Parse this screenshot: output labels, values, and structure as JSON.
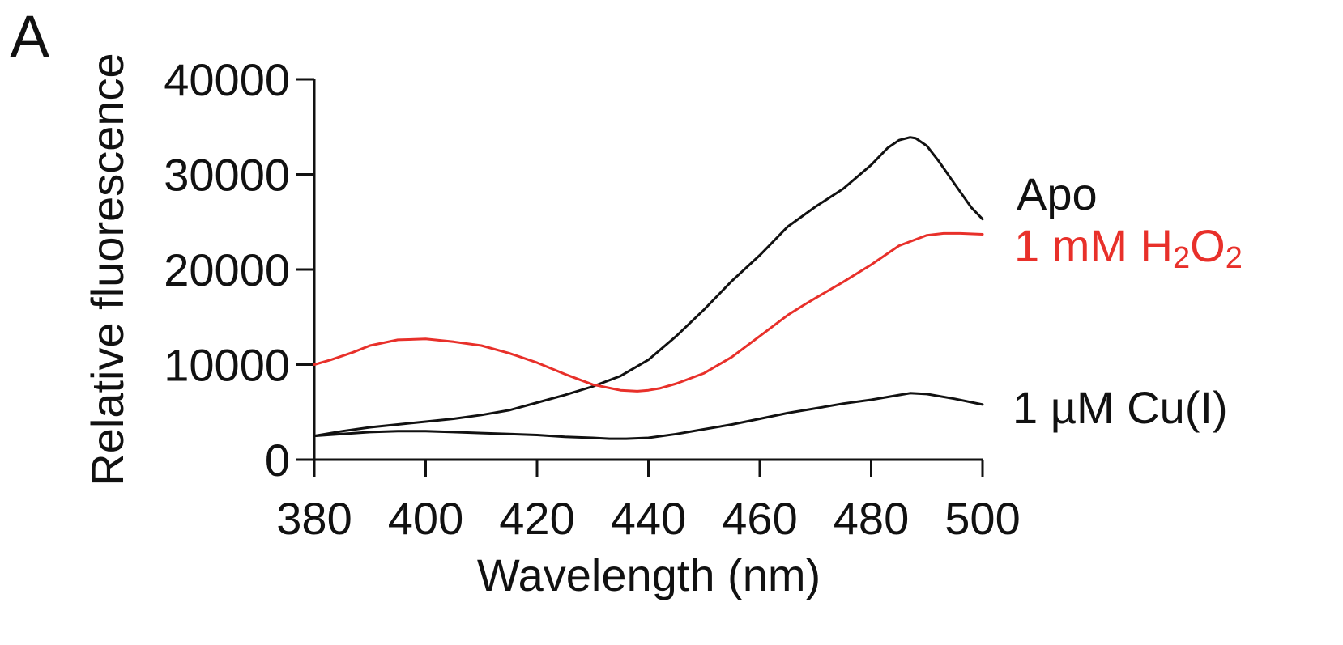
{
  "panel_label": "A",
  "chart_data": {
    "type": "line",
    "title": "",
    "xlabel": "Wavelength (nm)",
    "ylabel": "Relative fluorescence",
    "xlim": [
      380,
      500
    ],
    "ylim": [
      0,
      40000
    ],
    "xticks": [
      380,
      400,
      420,
      440,
      460,
      480,
      500
    ],
    "yticks": [
      0,
      10000,
      20000,
      30000,
      40000
    ],
    "grid": false,
    "legend": "inline-right",
    "series": [
      {
        "name": "Apo",
        "label_parts": [
          "Apo"
        ],
        "color": "#111111",
        "x": [
          380,
          385,
          390,
          395,
          400,
          405,
          410,
          415,
          420,
          425,
          430,
          435,
          440,
          445,
          450,
          455,
          460,
          462,
          465,
          470,
          475,
          480,
          483,
          485,
          487,
          488,
          490,
          492,
          495,
          498,
          500
        ],
        "y": [
          2500,
          3000,
          3400,
          3700,
          4000,
          4300,
          4700,
          5200,
          6000,
          6800,
          7700,
          8800,
          10500,
          13000,
          15800,
          18800,
          21500,
          22700,
          24500,
          26600,
          28500,
          31000,
          32800,
          33600,
          33900,
          33800,
          33000,
          31500,
          29000,
          26500,
          25300
        ]
      },
      {
        "name": "1 mM H2O2",
        "label_parts": [
          "1 mM H",
          "2",
          "O",
          "2"
        ],
        "color": "#e8302a",
        "x": [
          380,
          383,
          387,
          390,
          395,
          400,
          405,
          410,
          415,
          420,
          425,
          430,
          435,
          438,
          440,
          442,
          445,
          450,
          455,
          460,
          465,
          468,
          470,
          475,
          480,
          485,
          490,
          493,
          496,
          500
        ],
        "y": [
          10000,
          10500,
          11300,
          12000,
          12600,
          12700,
          12400,
          12000,
          11200,
          10200,
          9000,
          7900,
          7300,
          7200,
          7300,
          7500,
          8000,
          9100,
          10800,
          13000,
          15200,
          16300,
          17000,
          18700,
          20500,
          22500,
          23600,
          23800,
          23800,
          23700
        ]
      },
      {
        "name": "1 µM Cu(I)",
        "label_parts": [
          "1 µM Cu(I)"
        ],
        "color": "#111111",
        "x": [
          380,
          385,
          390,
          395,
          400,
          405,
          410,
          415,
          420,
          425,
          430,
          433,
          436,
          440,
          445,
          450,
          455,
          460,
          465,
          470,
          475,
          480,
          485,
          487,
          490,
          495,
          500
        ],
        "y": [
          2500,
          2700,
          2900,
          3000,
          3000,
          2900,
          2800,
          2700,
          2600,
          2400,
          2300,
          2200,
          2200,
          2300,
          2700,
          3200,
          3700,
          4300,
          4900,
          5400,
          5900,
          6300,
          6800,
          7000,
          6900,
          6400,
          5800
        ]
      }
    ]
  }
}
